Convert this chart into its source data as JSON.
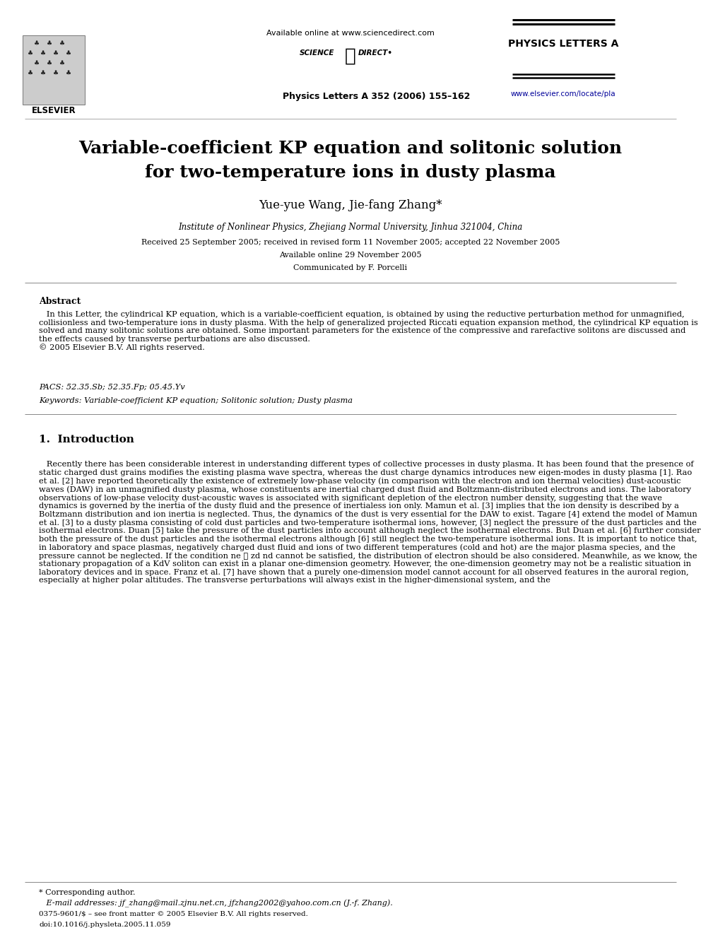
{
  "bg_color": "#ffffff",
  "title_line1": "Variable-coefficient KP equation and solitonic solution",
  "title_line2": "for two-temperature ions in dusty plasma",
  "authors": "Yue-yue Wang, Jie-fang Zhang*",
  "affiliation": "Institute of Nonlinear Physics, Zhejiang Normal University, Jinhua 321004, China",
  "received": "Received 25 September 2005; received in revised form 11 November 2005; accepted 22 November 2005",
  "available": "Available online 29 November 2005",
  "communicated": "Communicated by F. Porcelli",
  "journal_top": "Available online at www.sciencedirect.com",
  "journal_name": "PHYSICS LETTERS A",
  "journal_url": "www.elsevier.com/locate/pla",
  "journal_issue": "Physics Letters A 352 (2006) 155–162",
  "elsevier_text": "ELSEVIER",
  "abstract_title": "Abstract",
  "abstract_body": "   In this Letter, the cylindrical KP equation, which is a variable-coefficient equation, is obtained by using the reductive perturbation method for unmagnified, collisionless and two-temperature ions in dusty plasma. With the help of generalized projected Riccati equation expansion method, the cylindrical KP equation is solved and many solitonic solutions are obtained. Some important parameters for the existence of the compressive and rarefactive solitons are discussed and the effects caused by transverse perturbations are also discussed.\n© 2005 Elsevier B.V. All rights reserved.",
  "pacs": "PACS: 52.35.Sb; 52.35.Fp; 05.45.Yv",
  "keywords": "Keywords: Variable-coefficient KP equation; Solitonic solution; Dusty plasma",
  "section1_title": "1.  Introduction",
  "intro_body": "   Recently there has been considerable interest in understanding different types of collective processes in dusty plasma. It has been found that the presence of static charged dust grains modifies the existing plasma wave spectra, whereas the dust charge dynamics introduces new eigen-modes in dusty plasma [1]. Rao et al. [2] have reported theoretically the existence of extremely low-phase velocity (in comparison with the electron and ion thermal velocities) dust-acoustic waves (DAW) in an unmagnified dusty plasma, whose constituents are inertial charged dust fluid and Boltzmann-distributed electrons and ions. The laboratory observations of low-phase velocity dust-acoustic waves is associated with significant depletion of the electron number density, suggesting that the wave dynamics is governed by the inertia of the dusty fluid and the presence of inertialess ion only. Mamun et al. [3] implies that the ion density is described by a Boltzmann distribution and ion inertia is neglected. Thus, the dynamics of the dust is very essential for the DAW to exist. Tagare [4] extend the model of Mamun et al. [3] to a dusty plasma consisting of cold dust particles and two-temperature isothermal ions, however, [3] neglect the pressure of the dust particles and the isothermal electrons. Duan [5] take the pressure of the dust particles into account although neglect the isothermal electrons. But Duan et al. [6] further consider both the pressure of the dust particles and the isothermal electrons although [6] still neglect the two-temperature isothermal ions. It is important to notice that, in laboratory and space plasmas, negatively charged dust fluid and ions of two different temperatures (cold and hot) are the major plasma species, and the pressure cannot be neglected. If the condition ne ≪ zd nd cannot be satisfied, the distribution of electron should be also considered. Meanwhile, as we know, the stationary propagation of a KdV soliton can exist in a planar one-dimension geometry. However, the one-dimension geometry may not be a realistic situation in laboratory devices and in space. Franz et al. [7] have shown that a purely one-dimension model cannot account for all observed features in the auroral region, especially at higher polar altitudes. The transverse perturbations will always exist in the higher-dimensional system, and the",
  "footnote_star": "* Corresponding author.",
  "footnote_email": "   E-mail addresses: jf_zhang@mail.zjnu.net.cn, jfzhang2002@yahoo.com.cn (J.-f. Zhang).",
  "footnote_issn": "0375-9601/$ – see front matter © 2005 Elsevier B.V. All rights reserved.",
  "footnote_doi": "doi:10.1016/j.physleta.2005.11.059"
}
